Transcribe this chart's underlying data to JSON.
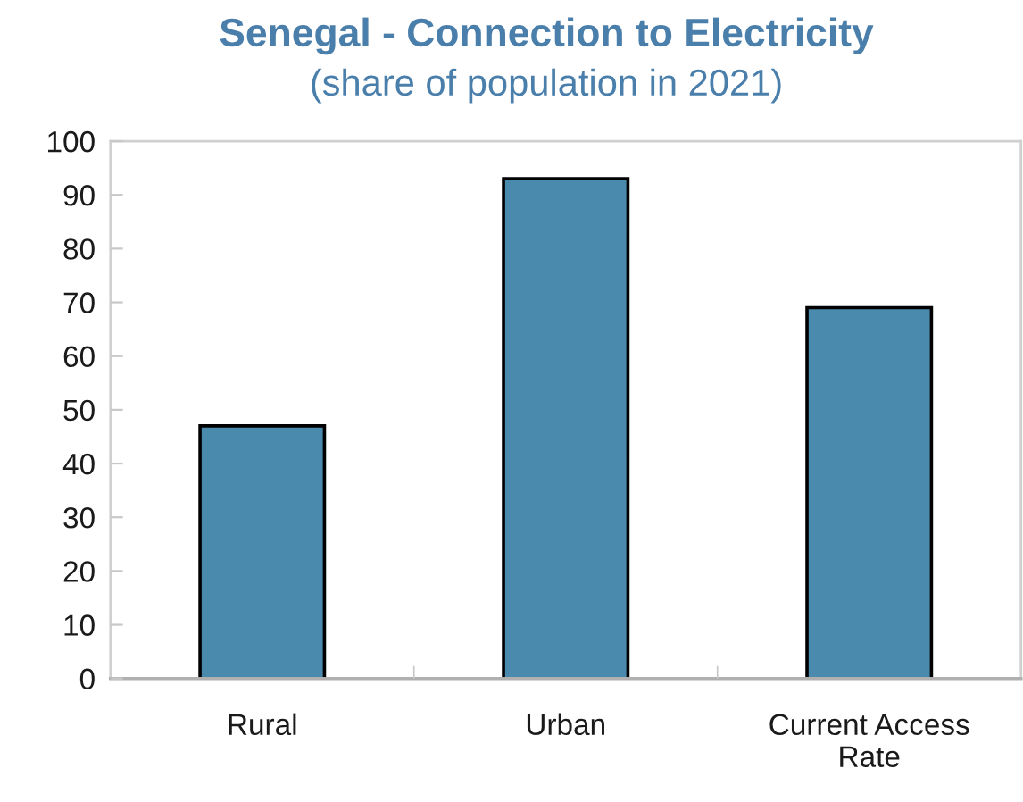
{
  "chart_data": {
    "type": "bar",
    "title": "Senegal - Connection to Electricity",
    "subtitle": "(share of population in 2021)",
    "categories": [
      "Rural",
      "Urban",
      "Current Access\nRate"
    ],
    "values": [
      47,
      93,
      69
    ],
    "color": "#4a8aad",
    "ylim": [
      0,
      100
    ],
    "yticks": [
      0,
      10,
      20,
      30,
      40,
      50,
      60,
      70,
      80,
      90,
      100
    ],
    "grid": false
  }
}
